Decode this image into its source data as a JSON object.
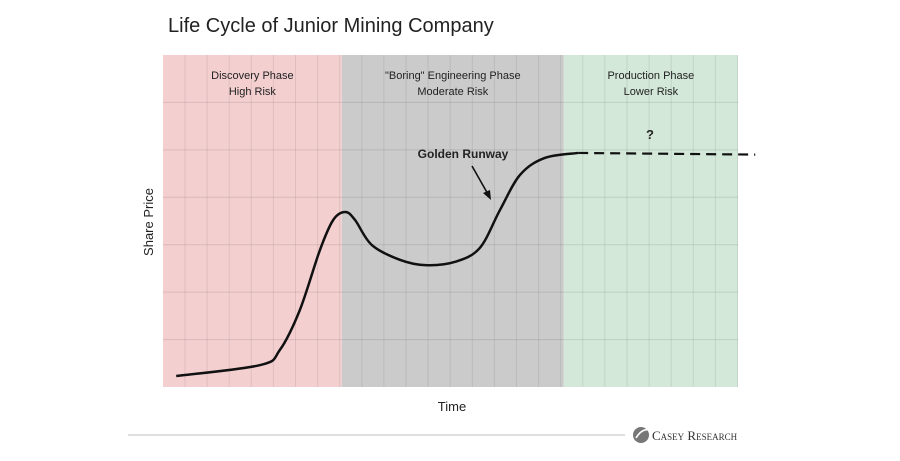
{
  "chart_data": {
    "type": "line",
    "title": "Life Cycle of Junior Mining Company",
    "xlabel": "Time",
    "ylabel": "Share Price",
    "xlim": [
      0,
      100
    ],
    "ylim": [
      0,
      100
    ],
    "grid": true,
    "phases": [
      {
        "name": "Discovery Phase",
        "risk": "High Risk",
        "start": 0,
        "end": 31.1,
        "color": "#f3cfd0"
      },
      {
        "name": "\"Boring\" Engineering Phase",
        "risk": "Moderate Risk",
        "start": 31.1,
        "end": 69.7,
        "color": "#cbcbcb"
      },
      {
        "name": "Production Phase",
        "risk": "Lower Risk",
        "start": 69.7,
        "end": 100,
        "color": "#d3e8d9"
      }
    ],
    "series": [
      {
        "name": "Share price",
        "style": "solid",
        "x": [
          2.3,
          16.9,
          20.3,
          23.8,
          27.3,
          29.6,
          31.7,
          33.4,
          36.3,
          41.2,
          45.6,
          50.8,
          55.1,
          58.6,
          62.1,
          66.4,
          72.2
        ],
        "y": [
          3.3,
          6.6,
          11.1,
          23.2,
          41.3,
          50.3,
          52.7,
          50.3,
          42.8,
          38.3,
          36.7,
          37.7,
          41.9,
          53.3,
          63.9,
          69.0,
          70.5
        ]
      },
      {
        "name": "Projected",
        "style": "dashed",
        "x": [
          72.2,
          103
        ],
        "y": [
          70.5,
          70.0
        ]
      }
    ],
    "annotations": [
      {
        "text": "Golden Runway"
      },
      {
        "text": "?"
      }
    ]
  },
  "footer": {
    "brand": "Casey Research"
  }
}
